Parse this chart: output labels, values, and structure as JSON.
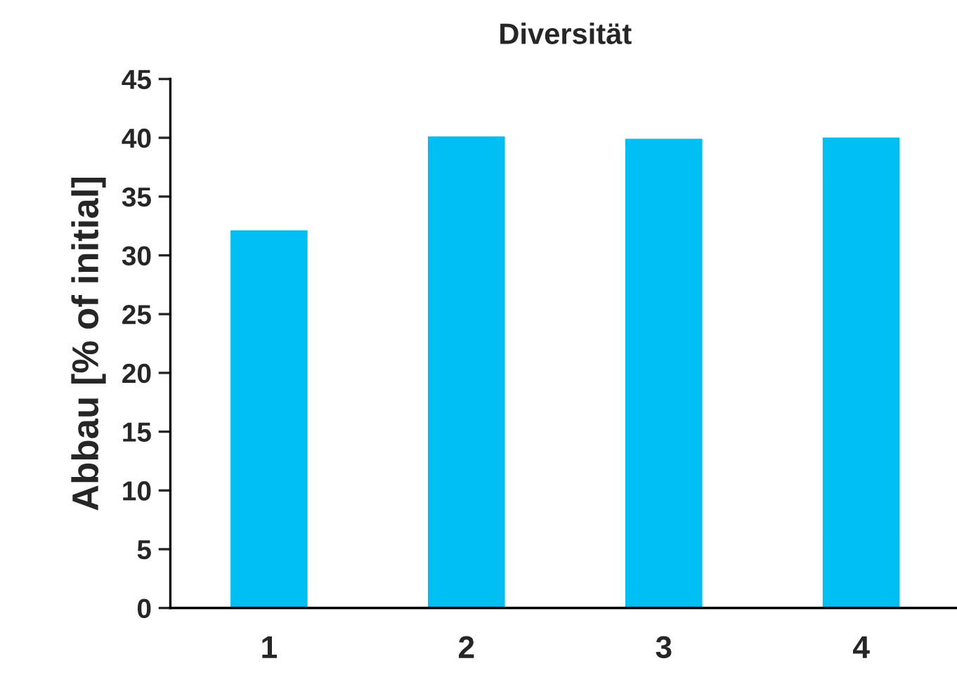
{
  "chart_data": {
    "type": "bar",
    "title": "Diversität",
    "ylabel": "Abbau [% of initial]",
    "categories": [
      "1",
      "2",
      "3",
      "4"
    ],
    "values": [
      32.2,
      40.2,
      40.0,
      40.1
    ],
    "color": "#00bff3",
    "ylim": [
      0,
      45
    ],
    "yticks": [
      0,
      5,
      10,
      15,
      20,
      25,
      30,
      35,
      40,
      45
    ],
    "grid": false,
    "legend": false
  }
}
